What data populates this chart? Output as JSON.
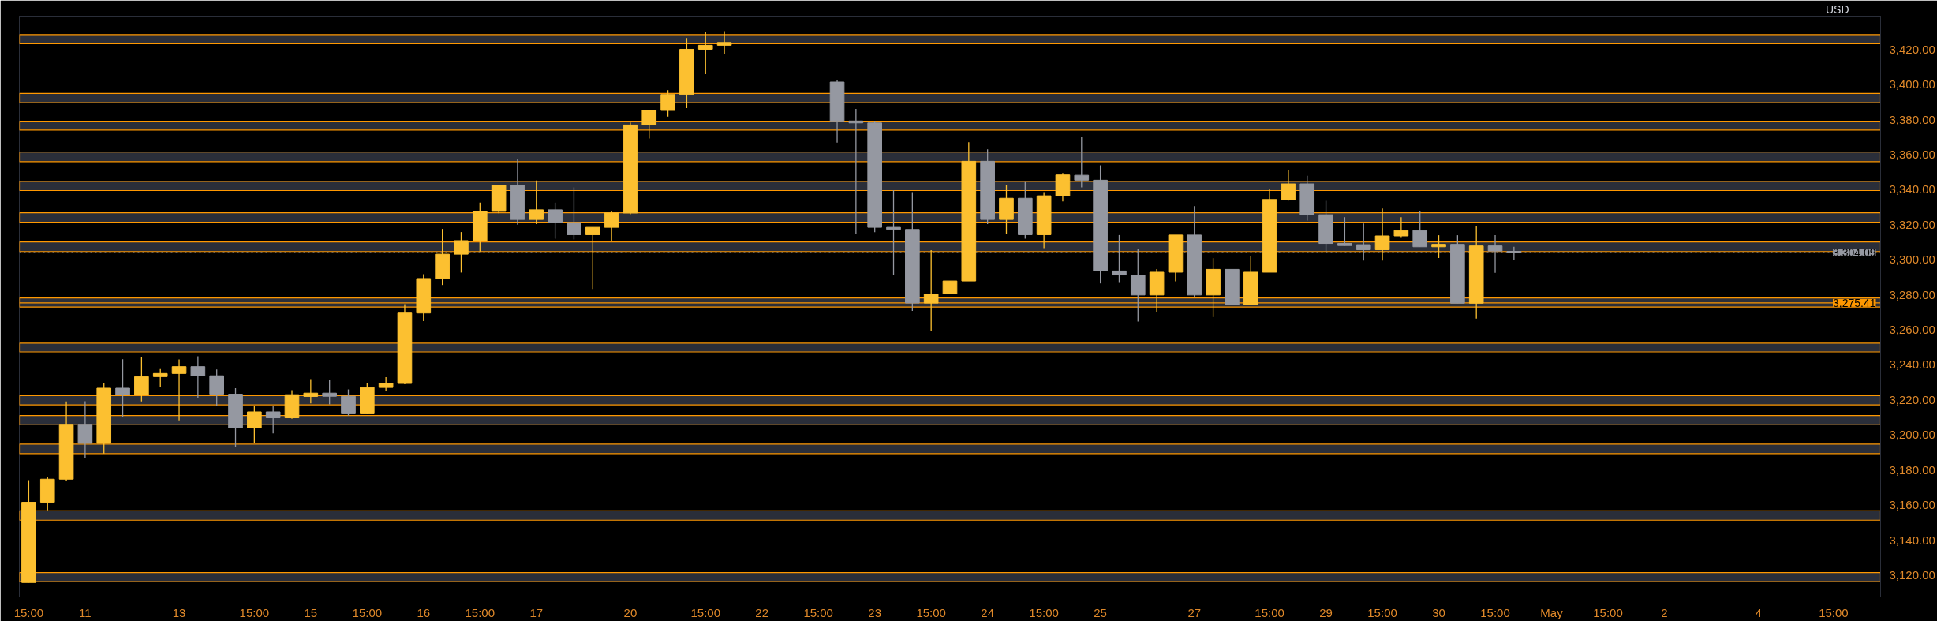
{
  "chart_data": {
    "type": "candlestick",
    "ylabel": "USD",
    "categories": [
      "15:00",
      null,
      null,
      "11",
      null,
      null,
      null,
      null,
      "13",
      null,
      null,
      null,
      "15:00",
      null,
      null,
      "15",
      null,
      null,
      "15:00",
      null,
      null,
      "16",
      null,
      null,
      "15:00",
      null,
      null,
      "17",
      null,
      null,
      null,
      null,
      "20",
      null,
      null,
      null,
      "15:00",
      null,
      null,
      "22",
      null,
      null,
      "15:00",
      null,
      null,
      "23",
      null,
      null,
      "15:00",
      null,
      null,
      "24",
      null,
      null,
      "15:00",
      null,
      null,
      "25",
      null,
      null,
      null,
      null,
      "27",
      null,
      null,
      null,
      "15:00",
      null,
      null,
      "29",
      null,
      null,
      "15:00",
      null,
      null,
      "30",
      null,
      null,
      "15:00",
      null,
      null,
      "May",
      null,
      null,
      "15:00",
      null,
      null,
      "2",
      null,
      null,
      null,
      null,
      "4",
      null,
      null,
      null,
      "15:00",
      null,
      null
    ],
    "ohlc": [
      [
        3115.8,
        3174.2,
        3115.8,
        3161.6
      ],
      [
        3161.6,
        3176,
        3157,
        3174.8
      ],
      [
        3174.8,
        3219.1,
        3174,
        3206.1
      ],
      [
        3206.1,
        3219.3,
        3186.7,
        3195.2
      ],
      [
        3195.2,
        3229.5,
        3189.4,
        3226.7
      ],
      [
        3226.7,
        3243.3,
        3210,
        3223
      ],
      [
        3223,
        3244.7,
        3219.1,
        3233.3
      ],
      [
        3233.3,
        3237.6,
        3227.1,
        3235.1
      ],
      [
        3235.1,
        3243.1,
        3208.4,
        3239
      ],
      [
        3239,
        3244.9,
        3220.9,
        3233.8
      ],
      [
        3233.8,
        3237.4,
        3216.3,
        3223.3
      ],
      [
        3223.3,
        3226.7,
        3193.1,
        3204.1
      ],
      [
        3204.1,
        3216.3,
        3195.2,
        3213.2
      ],
      [
        3213.2,
        3216.3,
        3200.9,
        3209.8
      ],
      [
        3209.8,
        3225.6,
        3209.3,
        3223
      ],
      [
        3222,
        3231.9,
        3218,
        3223.9
      ],
      [
        3223.9,
        3231.4,
        3217.5,
        3222.1
      ],
      [
        3222.1,
        3226,
        3211,
        3212.1
      ],
      [
        3212.1,
        3229.8,
        3212,
        3227.1
      ],
      [
        3227.1,
        3233,
        3225.2,
        3229.6
      ],
      [
        3229.4,
        3274.6,
        3229,
        3269.6
      ],
      [
        3269.6,
        3291.8,
        3265,
        3289.3
      ],
      [
        3289.3,
        3317.6,
        3285.6,
        3303.2
      ],
      [
        3303.2,
        3315.8,
        3292.7,
        3310.9
      ],
      [
        3310.9,
        3332.6,
        3304.7,
        3327.6
      ],
      [
        3327.6,
        3342.5,
        3326.5,
        3342.5
      ],
      [
        3342.5,
        3357.5,
        3320,
        3323
      ],
      [
        3323,
        3345.2,
        3320.4,
        3328.5
      ],
      [
        3328.5,
        3332.6,
        3312,
        3321.2
      ],
      [
        3321.2,
        3341.3,
        3311.6,
        3314.3
      ],
      [
        3314.3,
        3318.5,
        3283.3,
        3318.5
      ],
      [
        3318.5,
        3327.6,
        3310.7,
        3326.7
      ],
      [
        3326.7,
        3378.3,
        3326,
        3376.9
      ],
      [
        3376.9,
        3385.2,
        3369.2,
        3385.2
      ],
      [
        3385.2,
        3396.8,
        3381.7,
        3394.3
      ],
      [
        3394.3,
        3426.5,
        3386.5,
        3420.1
      ],
      [
        3420.1,
        3429.9,
        3405.9,
        3422.4
      ],
      [
        3422.4,
        3430.4,
        3417.3,
        3424
      ],
      null,
      null,
      null,
      null,
      null,
      [
        3401.4,
        3402.5,
        3366.9,
        3379.2
      ],
      [
        3379.2,
        3386.1,
        3314.6,
        3378.1
      ],
      [
        3378.1,
        3379.2,
        3315.7,
        3318.5
      ],
      [
        3318.5,
        3339.7,
        3291.1,
        3317.3
      ],
      [
        3317.3,
        3338.6,
        3270.8,
        3275.3
      ],
      [
        3275.3,
        3305.5,
        3259.4,
        3280.5
      ],
      [
        3280.5,
        3287.9,
        3280.5,
        3287.9
      ],
      [
        3287.9,
        3367.1,
        3287.9,
        3356.2
      ],
      [
        3356.2,
        3363,
        3320.3,
        3323
      ],
      [
        3323,
        3342.7,
        3314.6,
        3335.1
      ],
      [
        3335.1,
        3344.3,
        3312,
        3314.3
      ],
      [
        3314.3,
        3338.6,
        3306.6,
        3336.5
      ],
      [
        3336.5,
        3349.5,
        3333.3,
        3348.4
      ],
      [
        3348.2,
        3370.1,
        3341.3,
        3345.4
      ],
      [
        3345.4,
        3353.9,
        3286.5,
        3293.6
      ],
      [
        3293.6,
        3314.1,
        3286.8,
        3291.3
      ],
      [
        3291.3,
        3305.9,
        3264.8,
        3279.9
      ],
      [
        3279.9,
        3294.7,
        3270.1,
        3292.9
      ],
      [
        3292.9,
        3314.1,
        3287.7,
        3314.1
      ],
      [
        3314.1,
        3330.6,
        3278.5,
        3279.9
      ],
      [
        3279.9,
        3300.9,
        3267.3,
        3294.5
      ],
      [
        3294.5,
        3294.5,
        3274.2,
        3274.2
      ],
      [
        3274.2,
        3302,
        3274.2,
        3292.9
      ],
      [
        3292.9,
        3340.2,
        3292.9,
        3334.4
      ],
      [
        3334.3,
        3351.4,
        3333.8,
        3343.3
      ],
      [
        3343.3,
        3347.9,
        3322.4,
        3325.7
      ],
      [
        3325.7,
        3333.6,
        3304.5,
        3309.3
      ],
      [
        3309.3,
        3324.3,
        3308,
        3308.1
      ],
      [
        3308.6,
        3320.7,
        3299.5,
        3305.7
      ],
      [
        3305.7,
        3329.3,
        3299.5,
        3313.6
      ],
      [
        3313.6,
        3324.3,
        3312.9,
        3316.7
      ],
      [
        3316.7,
        3327.6,
        3307.4,
        3307.4
      ],
      [
        3307.4,
        3314,
        3301,
        3308.8
      ],
      [
        3308.8,
        3314,
        3275.2,
        3275.2
      ],
      [
        3275.2,
        3319.3,
        3266.4,
        3307.9
      ],
      [
        3307.9,
        3314,
        3292.6,
        3305
      ],
      [
        3304.8,
        3307.4,
        3299.8,
        3304.09
      ],
      null,
      null,
      null,
      null,
      null,
      null,
      null,
      null,
      null,
      null,
      null,
      null,
      null,
      null,
      null,
      null,
      null,
      null,
      null
    ],
    "colors": [
      "#fcc030",
      "#fcc030",
      "#fcc030",
      "#9598a1",
      "#fcc030",
      "#9598a1",
      "#fcc030",
      "#fcc030",
      "#fcc030",
      "#9598a1",
      "#9598a1",
      "#9598a1",
      "#fcc030",
      "#9598a1",
      "#fcc030",
      "#fcc030",
      "#9598a1",
      "#9598a1",
      "#fcc030",
      "#fcc030",
      "#fcc030",
      "#fcc030",
      "#fcc030",
      "#fcc030",
      "#fcc030",
      "#fcc030",
      "#9598a1",
      "#fcc030",
      "#9598a1",
      "#9598a1",
      "#fcc030",
      "#fcc030",
      "#fcc030",
      "#fcc030",
      "#fcc030",
      "#fcc030",
      "#fcc030",
      "#fcc030",
      null,
      null,
      null,
      null,
      null,
      "#9598a1",
      "#9598a1",
      "#9598a1",
      "#9598a1",
      "#9598a1",
      "#fcc030",
      "#fcc030",
      "#fcc030",
      "#9598a1",
      "#fcc030",
      "#9598a1",
      "#fcc030",
      "#fcc030",
      "#9598a1",
      "#9598a1",
      "#9598a1",
      "#9598a1",
      "#fcc030",
      "#fcc030",
      "#9598a1",
      "#fcc030",
      "#9598a1",
      "#fcc030",
      "#fcc030",
      "#fcc030",
      "#9598a1",
      "#9598a1",
      "#9598a1",
      "#9598a1",
      "#fcc030",
      "#fcc030",
      "#9598a1",
      "#fcc030",
      "#9598a1",
      "#fcc030",
      "#9598a1",
      "#9598a1",
      null,
      null,
      null,
      null,
      null,
      null,
      null,
      null,
      null,
      null,
      null,
      null,
      null,
      null,
      null,
      null,
      null,
      null,
      null
    ],
    "ylim": [
      3107.6,
      3439
    ],
    "yticks": [
      {
        "value": 3120,
        "label": "3,120.00"
      },
      {
        "value": 3140,
        "label": "3,140.00"
      },
      {
        "value": 3160,
        "label": "3,160.00"
      },
      {
        "value": 3180,
        "label": "3,180.00"
      },
      {
        "value": 3200,
        "label": "3,200.00"
      },
      {
        "value": 3220,
        "label": "3,220.00"
      },
      {
        "value": 3240,
        "label": "3,240.00"
      },
      {
        "value": 3260,
        "label": "3,260.00"
      },
      {
        "value": 3280,
        "label": "3,280.00"
      },
      {
        "value": 3300,
        "label": "3,300.00"
      },
      {
        "value": 3320,
        "label": "3,320.00"
      },
      {
        "value": 3340,
        "label": "3,340.00"
      },
      {
        "value": 3360,
        "label": "3,360.00"
      },
      {
        "value": 3380,
        "label": "3,380.00"
      },
      {
        "value": 3400,
        "label": "3,400.00"
      },
      {
        "value": 3420,
        "label": "3,420.00"
      }
    ],
    "bands": [
      {
        "axis": "y",
        "from": 3423.3,
        "to": 3428.5,
        "color": "#2a2e39"
      },
      {
        "axis": "y",
        "from": 3389.6,
        "to": 3394.9,
        "color": "#2a2e39"
      },
      {
        "axis": "y",
        "from": 3374.0,
        "to": 3379.1,
        "color": "#2a2e39"
      },
      {
        "axis": "y",
        "from": 3356.0,
        "to": 3361.5,
        "color": "#2a2e39"
      },
      {
        "axis": "y",
        "from": 3339.5,
        "to": 3344.7,
        "color": "#2a2e39"
      },
      {
        "axis": "y",
        "from": 3321.4,
        "to": 3326.8,
        "color": "#2a2e39"
      },
      {
        "axis": "y",
        "from": 3304.7,
        "to": 3310.2,
        "color": "#2a2e39"
      },
      {
        "axis": "y",
        "from": 3273.0,
        "to": 3278.2,
        "color": "#2a2e39"
      },
      {
        "axis": "y",
        "from": 3247.4,
        "to": 3252.4,
        "color": "#2a2e39"
      },
      {
        "axis": "y",
        "from": 3217.2,
        "to": 3222.5,
        "color": "#2a2e39"
      },
      {
        "axis": "y",
        "from": 3205.8,
        "to": 3211.1,
        "color": "#2a2e39"
      },
      {
        "axis": "y",
        "from": 3189.4,
        "to": 3194.8,
        "color": "#2a2e39"
      },
      {
        "axis": "y",
        "from": 3151.4,
        "to": 3156.8,
        "color": "#2a2e39"
      },
      {
        "axis": "y",
        "from": 3116.3,
        "to": 3121.5,
        "color": "#2a2e39"
      }
    ],
    "ref_lines": [
      {
        "axis": "y",
        "value": 3304.09,
        "label": "3,304.09",
        "color": "#9598a1",
        "line_style": "dotted"
      },
      {
        "axis": "y",
        "value": 3275.41,
        "label": "3,275.41",
        "color": "#ff9800",
        "line_style": "solid"
      }
    ]
  }
}
